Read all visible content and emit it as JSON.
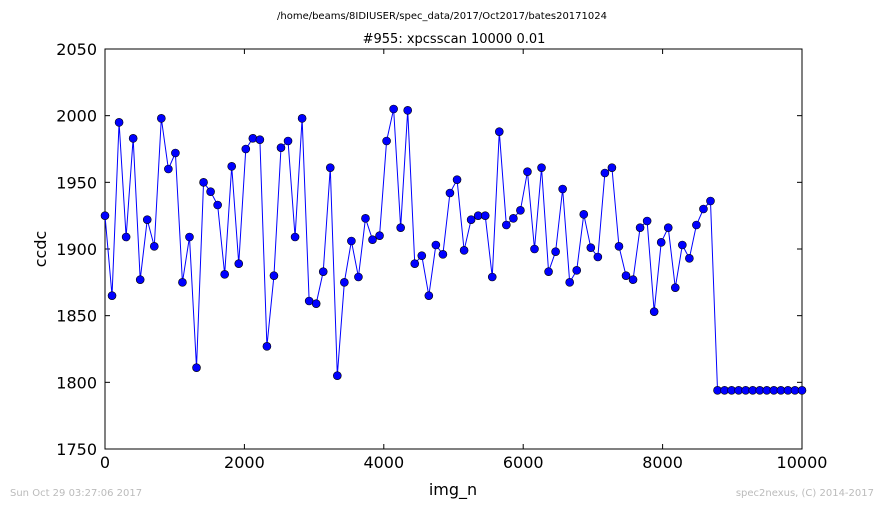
{
  "chart_data": {
    "type": "line",
    "suptitle": "/home/beams/8IDIUSER/spec_data/2017/Oct2017/bates20171024",
    "title": "#955: xpcsscan 10000 0.01",
    "xlabel": "img_n",
    "ylabel": "ccdc",
    "xlim": [
      0,
      10000
    ],
    "ylim": [
      1750,
      2050
    ],
    "xticks": [
      0,
      2000,
      4000,
      6000,
      8000,
      10000
    ],
    "yticks": [
      1750,
      1800,
      1850,
      1900,
      1950,
      2000,
      2050
    ],
    "grid": false,
    "marker": "circle",
    "color": "#0000ff",
    "series": [
      {
        "x": [
          0,
          101,
          202,
          303,
          404,
          505,
          606,
          707,
          808,
          909,
          1010,
          1111,
          1212,
          1313,
          1414,
          1515,
          1616,
          1717,
          1818,
          1919,
          2020,
          2121,
          2222,
          2323,
          2424,
          2525,
          2626,
          2727,
          2828,
          2929,
          3030,
          3131,
          3232,
          3333,
          3434,
          3535,
          3636,
          3737,
          3838,
          3939,
          4040,
          4141,
          4242,
          4343,
          4444,
          4545,
          4646,
          4747,
          4848,
          4949,
          5051,
          5152,
          5253,
          5354,
          5455,
          5556,
          5657,
          5758,
          5859,
          5960,
          6061,
          6162,
          6263,
          6364,
          6465,
          6566,
          6667,
          6768,
          6869,
          6970,
          7071,
          7172,
          7273,
          7374,
          7475,
          7576,
          7677,
          7778,
          7879,
          7980,
          8081,
          8182,
          8283,
          8384,
          8485,
          8586,
          8687,
          8788,
          8889,
          8990,
          9091,
          9192,
          9293,
          9394,
          9495,
          9596,
          9697,
          9798,
          9899,
          10000
        ],
        "values": [
          1925,
          1865,
          1995,
          1909,
          1983,
          1877,
          1922,
          1902,
          1998,
          1960,
          1972,
          1875,
          1909,
          1811,
          1950,
          1943,
          1933,
          1881,
          1962,
          1889,
          1975,
          1983,
          1982,
          1827,
          1880,
          1976,
          1981,
          1909,
          1998,
          1861,
          1859,
          1883,
          1961,
          1805,
          1875,
          1906,
          1879,
          1923,
          1907,
          1910,
          1981,
          2005,
          1916,
          2004,
          1889,
          1895,
          1865,
          1903,
          1896,
          1942,
          1952,
          1899,
          1922,
          1925,
          1925,
          1879,
          1988,
          1918,
          1923,
          1929,
          1958,
          1900,
          1961,
          1883,
          1898,
          1945,
          1875,
          1884,
          1926,
          1901,
          1894,
          1957,
          1961,
          1902,
          1880,
          1877,
          1916,
          1921,
          1853,
          1905,
          1916,
          1871,
          1903,
          1893,
          1918,
          1930,
          1936,
          1794,
          1794,
          1794,
          1794,
          1794,
          1794,
          1794,
          1794,
          1794,
          1794,
          1794,
          1794,
          1794
        ]
      }
    ]
  },
  "footer": {
    "timestamp": "Sun Oct 29 03:27:06 2017",
    "credit": "spec2nexus, (C) 2014-2017"
  }
}
